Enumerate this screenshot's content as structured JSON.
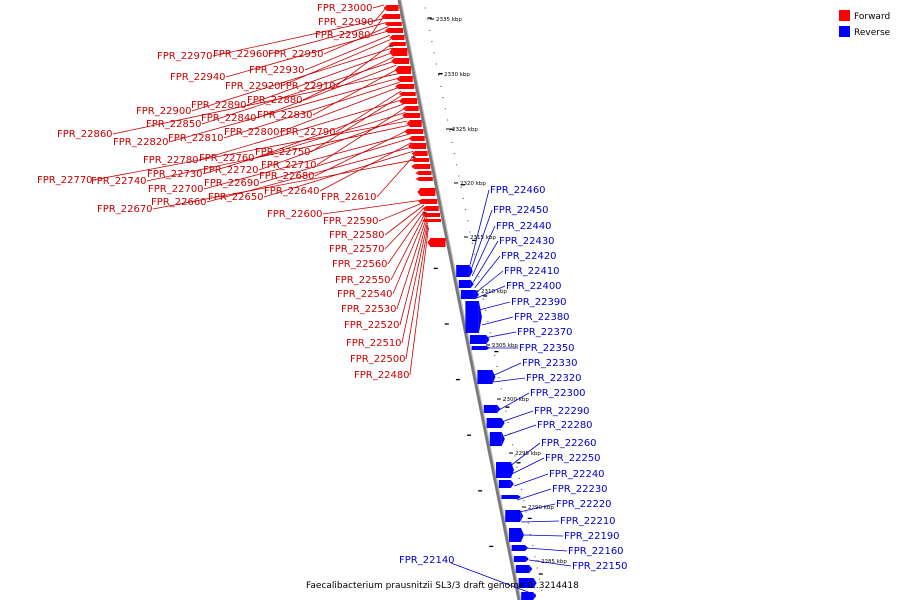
{
  "caption": "Faecalibacterium prausnitzii SL3/3 draft genome 0..3214418",
  "legend": [
    {
      "label": "Forward",
      "color": "#ff0000"
    },
    {
      "label": "Reverse",
      "color": "#0000ff"
    }
  ],
  "axis_ticks": [
    "2335 kbp",
    "2330 kbp",
    "2325 kbp",
    "2320 kbp",
    "2315 kbp",
    "2310 kbp",
    "2305 kbp",
    "2300 kbp",
    "2295 kbp",
    "2290 kbp",
    "2285 kbp"
  ],
  "forward_genes": [
    "FPR_23000",
    "FPR_22990",
    "FPR_22980",
    "FPR_22970",
    "FPR_22960",
    "FPR_22950",
    "FPR_22940",
    "FPR_22930",
    "FPR_22920",
    "FPR_22910",
    "FPR_22900",
    "FPR_22890",
    "FPR_22880",
    "FPR_22850",
    "FPR_22840",
    "FPR_22830",
    "FPR_22860",
    "FPR_22820",
    "FPR_22810",
    "FPR_22800",
    "FPR_22790",
    "FPR_22750",
    "FPR_22780",
    "FPR_22760",
    "FPR_22710",
    "FPR_22730",
    "FPR_22720",
    "FPR_22770",
    "FPR_22740",
    "FPR_22680",
    "FPR_22700",
    "FPR_22690",
    "FPR_22640",
    "FPR_22660",
    "FPR_22650",
    "FPR_22610",
    "FPR_22670",
    "FPR_22600",
    "FPR_22590",
    "FPR_22580",
    "FPR_22570",
    "FPR_22560",
    "FPR_22550",
    "FPR_22540",
    "FPR_22530",
    "FPR_22520",
    "FPR_22510",
    "FPR_22500",
    "FPR_22480"
  ],
  "reverse_genes": [
    "FPR_22460",
    "FPR_22450",
    "FPR_22440",
    "FPR_22430",
    "FPR_22420",
    "FPR_22410",
    "FPR_22400",
    "FPR_22390",
    "FPR_22380",
    "FPR_22370",
    "FPR_22350",
    "FPR_22330",
    "FPR_22320",
    "FPR_22300",
    "FPR_22290",
    "FPR_22280",
    "FPR_22260",
    "FPR_22250",
    "FPR_22240",
    "FPR_22230",
    "FPR_22220",
    "FPR_22210",
    "FPR_22190",
    "FPR_22160",
    "FPR_22150",
    "FPR_22140"
  ]
}
